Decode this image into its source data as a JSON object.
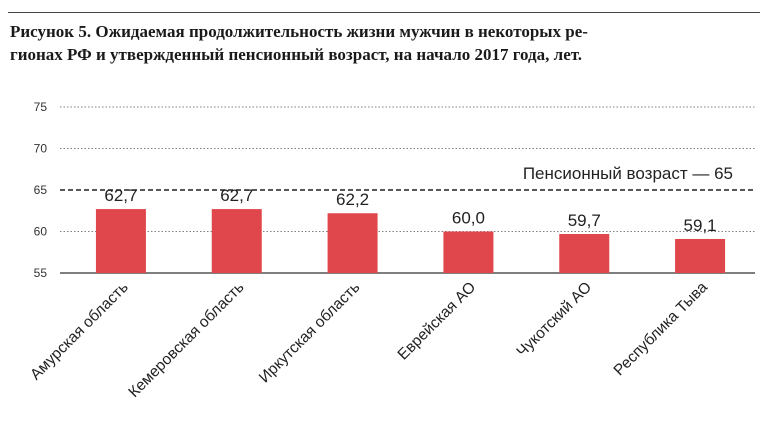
{
  "figure": {
    "title_line1": "Рисунок 5. Ожидаемая продолжительность жизни мужчин в некоторых ре-",
    "title_line2": "гионах РФ и утвержденный пенсионный возраст, на начало 2017 года, лет."
  },
  "chart_data": {
    "type": "bar",
    "categories": [
      "Амурская область",
      "Кемеровская область",
      "Иркутская область",
      "Еврейская АО",
      "Чукотский АО",
      "Республика Тыва"
    ],
    "values": [
      62.7,
      62.7,
      62.2,
      60.0,
      59.7,
      59.1
    ],
    "value_labels": [
      "62,7",
      "62,7",
      "62,2",
      "60,0",
      "59,7",
      "59,1"
    ],
    "ylim": [
      55,
      75
    ],
    "yticks": [
      55,
      60,
      65,
      70,
      75
    ],
    "ytick_labels": [
      "55",
      "60",
      "65",
      "70",
      "75"
    ],
    "grid": true,
    "bar_color": "#e0474c",
    "reference_line": {
      "value": 65,
      "label": "Пенсионный возраст — 65",
      "style": "dashed"
    }
  }
}
